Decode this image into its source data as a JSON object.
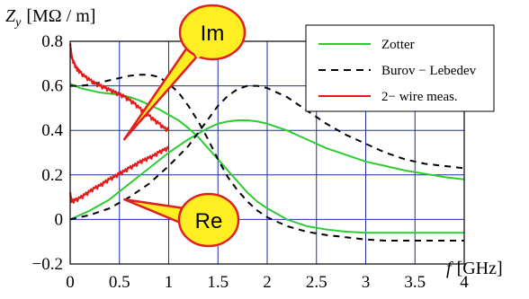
{
  "chart_data": {
    "type": "line",
    "ylabel": {
      "symbol": "Z",
      "subscript": "y",
      "unit": "[MΩ / m]"
    },
    "xlabel": {
      "symbol": "f",
      "unit": "[GHz]"
    },
    "xlim": [
      0,
      4
    ],
    "ylim": [
      -0.2,
      0.8
    ],
    "x_ticks": [
      "0",
      "0.5",
      "1",
      "1.5",
      "2",
      "2.5",
      "3",
      "3.5",
      "4"
    ],
    "y_ticks": [
      "−0.2",
      "0",
      "0.2",
      "0.4",
      "0.6",
      "0.8"
    ],
    "grid": true,
    "legend_position": "top-right",
    "callouts": [
      {
        "label": "Im",
        "color": "#ffee22",
        "border": "#e02020",
        "target": [
          0.55,
          0.36
        ]
      },
      {
        "label": "Re",
        "color": "#ffee22",
        "border": "#e02020",
        "target": [
          0.55,
          0.09
        ]
      }
    ],
    "series": [
      {
        "name": "Zotter",
        "part": "Im",
        "color": "#2ecc2e",
        "dash": "solid",
        "x": [
          0,
          0.1,
          0.2,
          0.3,
          0.4,
          0.5,
          0.6,
          0.7,
          0.8,
          0.9,
          1.0,
          1.1,
          1.2,
          1.3,
          1.4,
          1.5,
          1.6,
          1.7,
          1.8,
          1.9,
          2.0,
          2.2,
          2.4,
          2.6,
          2.8,
          3.0,
          3.2,
          3.4,
          3.6,
          3.8,
          4.0
        ],
        "y": [
          0.61,
          0.59,
          0.58,
          0.57,
          0.565,
          0.56,
          0.55,
          0.535,
          0.515,
          0.495,
          0.47,
          0.445,
          0.41,
          0.37,
          0.32,
          0.27,
          0.22,
          0.17,
          0.12,
          0.08,
          0.05,
          0.0,
          -0.03,
          -0.045,
          -0.055,
          -0.06,
          -0.06,
          -0.06,
          -0.06,
          -0.06,
          -0.06
        ]
      },
      {
        "name": "Zotter",
        "part": "Re",
        "color": "#2ecc2e",
        "dash": "solid",
        "x": [
          0,
          0.2,
          0.4,
          0.6,
          0.8,
          1.0,
          1.2,
          1.4,
          1.5,
          1.6,
          1.7,
          1.8,
          1.9,
          2.0,
          2.2,
          2.4,
          2.6,
          2.8,
          3.0,
          3.2,
          3.4,
          3.6,
          3.8,
          4.0
        ],
        "y": [
          0.0,
          0.04,
          0.09,
          0.16,
          0.23,
          0.3,
          0.36,
          0.41,
          0.43,
          0.44,
          0.445,
          0.445,
          0.44,
          0.43,
          0.4,
          0.36,
          0.32,
          0.29,
          0.26,
          0.24,
          0.22,
          0.205,
          0.19,
          0.18
        ]
      },
      {
        "name": "Burov − Lebedev",
        "part": "Im",
        "color": "#000000",
        "dash": "dashed",
        "x": [
          0,
          0.1,
          0.2,
          0.3,
          0.4,
          0.5,
          0.6,
          0.7,
          0.8,
          0.9,
          1.0,
          1.1,
          1.2,
          1.3,
          1.4,
          1.5,
          1.6,
          1.7,
          1.8,
          1.9,
          2.0,
          2.2,
          2.4,
          2.6,
          2.8,
          3.0,
          3.2,
          3.4,
          3.6,
          3.8,
          4.0
        ],
        "y": [
          0.6,
          0.6,
          0.605,
          0.615,
          0.625,
          0.635,
          0.645,
          0.65,
          0.65,
          0.64,
          0.61,
          0.57,
          0.51,
          0.44,
          0.36,
          0.27,
          0.19,
          0.13,
          0.08,
          0.04,
          0.01,
          -0.03,
          -0.055,
          -0.07,
          -0.08,
          -0.09,
          -0.095,
          -0.095,
          -0.095,
          -0.095,
          -0.095
        ]
      },
      {
        "name": "Burov − Lebedev",
        "part": "Re",
        "color": "#000000",
        "dash": "dashed",
        "x": [
          0,
          0.2,
          0.4,
          0.6,
          0.8,
          1.0,
          1.2,
          1.4,
          1.5,
          1.6,
          1.7,
          1.8,
          1.9,
          2.0,
          2.2,
          2.4,
          2.6,
          2.8,
          3.0,
          3.2,
          3.4,
          3.6,
          3.8,
          4.0
        ],
        "y": [
          0.0,
          0.02,
          0.05,
          0.1,
          0.16,
          0.24,
          0.33,
          0.45,
          0.51,
          0.555,
          0.585,
          0.6,
          0.6,
          0.59,
          0.55,
          0.49,
          0.43,
          0.38,
          0.34,
          0.3,
          0.27,
          0.25,
          0.24,
          0.23
        ]
      },
      {
        "name": "2− wire meas.",
        "part": "Im",
        "color": "#e31a1a",
        "dash": "solid",
        "x": [
          0.0,
          0.01,
          0.02,
          0.04,
          0.06,
          0.08,
          0.1,
          0.15,
          0.2,
          0.25,
          0.3,
          0.35,
          0.4,
          0.45,
          0.5,
          0.55,
          0.6,
          0.65,
          0.7,
          0.75,
          0.8,
          0.85,
          0.9,
          0.95,
          1.0
        ],
        "y": [
          0.79,
          0.75,
          0.72,
          0.7,
          0.68,
          0.67,
          0.66,
          0.64,
          0.625,
          0.61,
          0.6,
          0.59,
          0.58,
          0.57,
          0.56,
          0.55,
          0.535,
          0.52,
          0.5,
          0.48,
          0.465,
          0.445,
          0.43,
          0.41,
          0.4
        ]
      },
      {
        "name": "2− wire meas.",
        "part": "Re",
        "color": "#e31a1a",
        "dash": "solid",
        "x": [
          0.0,
          0.01,
          0.02,
          0.05,
          0.1,
          0.15,
          0.2,
          0.25,
          0.3,
          0.35,
          0.4,
          0.45,
          0.5,
          0.55,
          0.6,
          0.65,
          0.7,
          0.75,
          0.8,
          0.85,
          0.9,
          0.95,
          1.0
        ],
        "y": [
          0.12,
          0.09,
          0.08,
          0.085,
          0.095,
          0.11,
          0.125,
          0.14,
          0.15,
          0.165,
          0.18,
          0.19,
          0.205,
          0.215,
          0.23,
          0.24,
          0.255,
          0.265,
          0.275,
          0.285,
          0.3,
          0.31,
          0.32
        ]
      }
    ],
    "legend": [
      {
        "label": "Zotter",
        "color": "#2ecc2e",
        "dash": "solid"
      },
      {
        "label": "Burov − Lebedev",
        "color": "#000000",
        "dash": "dashed"
      },
      {
        "label": "2− wire meas.",
        "color": "#e31a1a",
        "dash": "solid"
      }
    ]
  }
}
